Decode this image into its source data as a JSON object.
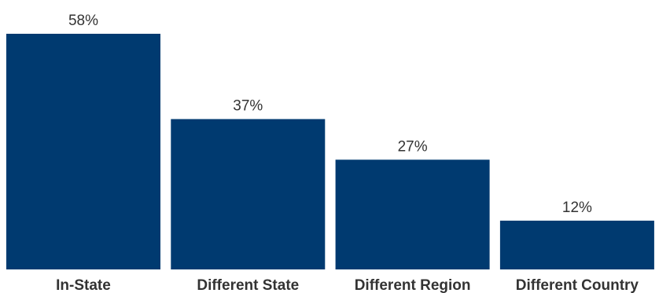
{
  "chart_data": {
    "type": "bar",
    "categories": [
      "In-State",
      "Different State",
      "Different Region",
      "Different Country"
    ],
    "values": [
      58,
      37,
      27,
      12
    ],
    "value_labels": [
      "58%",
      "37%",
      "27%",
      "12%"
    ],
    "ylim": [
      0,
      58
    ],
    "grid": false,
    "bar_color": "#003a70"
  }
}
